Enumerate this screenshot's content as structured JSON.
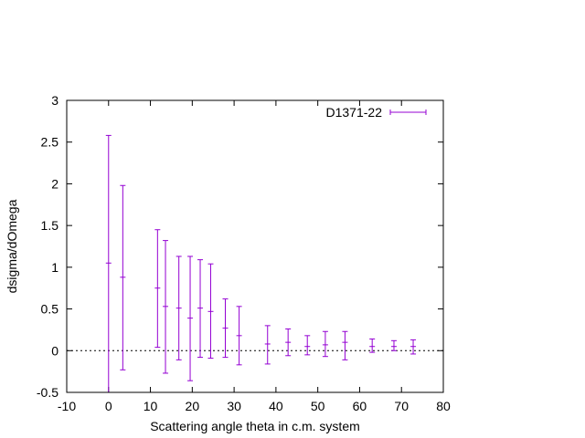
{
  "chart_data": {
    "type": "scatter",
    "title": "",
    "xlabel": "Scattering angle theta in c.m. system",
    "ylabel": "dsigma/dOmega",
    "xlim": [
      -10,
      80
    ],
    "ylim": [
      -0.5,
      3
    ],
    "xticks": [
      "-10",
      "0",
      "10",
      "20",
      "30",
      "40",
      "50",
      "60",
      "70",
      "80"
    ],
    "yticks": [
      "-0.5",
      "0",
      "0.5",
      "1",
      "1.5",
      "2",
      "2.5",
      "3"
    ],
    "grid": false,
    "zero_line": true,
    "legend_position": "top-right",
    "series": [
      {
        "name": "D1371-22",
        "color": "#9400d3",
        "style": "yerrorbars",
        "points": [
          {
            "x": 0.0,
            "y": 1.05,
            "ylow": -0.5,
            "yhigh": 2.58
          },
          {
            "x": 3.4,
            "y": 0.88,
            "ylow": -0.23,
            "yhigh": 1.98
          },
          {
            "x": 11.7,
            "y": 0.75,
            "ylow": 0.04,
            "yhigh": 1.45
          },
          {
            "x": 13.6,
            "y": 0.53,
            "ylow": -0.27,
            "yhigh": 1.32
          },
          {
            "x": 16.8,
            "y": 0.51,
            "ylow": -0.11,
            "yhigh": 1.13
          },
          {
            "x": 19.5,
            "y": 0.39,
            "ylow": -0.36,
            "yhigh": 1.13
          },
          {
            "x": 21.9,
            "y": 0.51,
            "ylow": -0.08,
            "yhigh": 1.09
          },
          {
            "x": 24.4,
            "y": 0.47,
            "ylow": -0.09,
            "yhigh": 1.04
          },
          {
            "x": 27.9,
            "y": 0.27,
            "ylow": -0.08,
            "yhigh": 0.62
          },
          {
            "x": 31.2,
            "y": 0.18,
            "ylow": -0.17,
            "yhigh": 0.53
          },
          {
            "x": 38.0,
            "y": 0.08,
            "ylow": -0.16,
            "yhigh": 0.3
          },
          {
            "x": 42.9,
            "y": 0.1,
            "ylow": -0.06,
            "yhigh": 0.26
          },
          {
            "x": 47.5,
            "y": 0.05,
            "ylow": -0.05,
            "yhigh": 0.18
          },
          {
            "x": 51.8,
            "y": 0.07,
            "ylow": -0.07,
            "yhigh": 0.23
          },
          {
            "x": 56.5,
            "y": 0.1,
            "ylow": -0.11,
            "yhigh": 0.23
          },
          {
            "x": 63.0,
            "y": 0.05,
            "ylow": -0.02,
            "yhigh": 0.14
          },
          {
            "x": 68.2,
            "y": 0.05,
            "ylow": 0.0,
            "yhigh": 0.12
          },
          {
            "x": 72.8,
            "y": 0.05,
            "ylow": -0.04,
            "yhigh": 0.13
          }
        ]
      }
    ]
  }
}
